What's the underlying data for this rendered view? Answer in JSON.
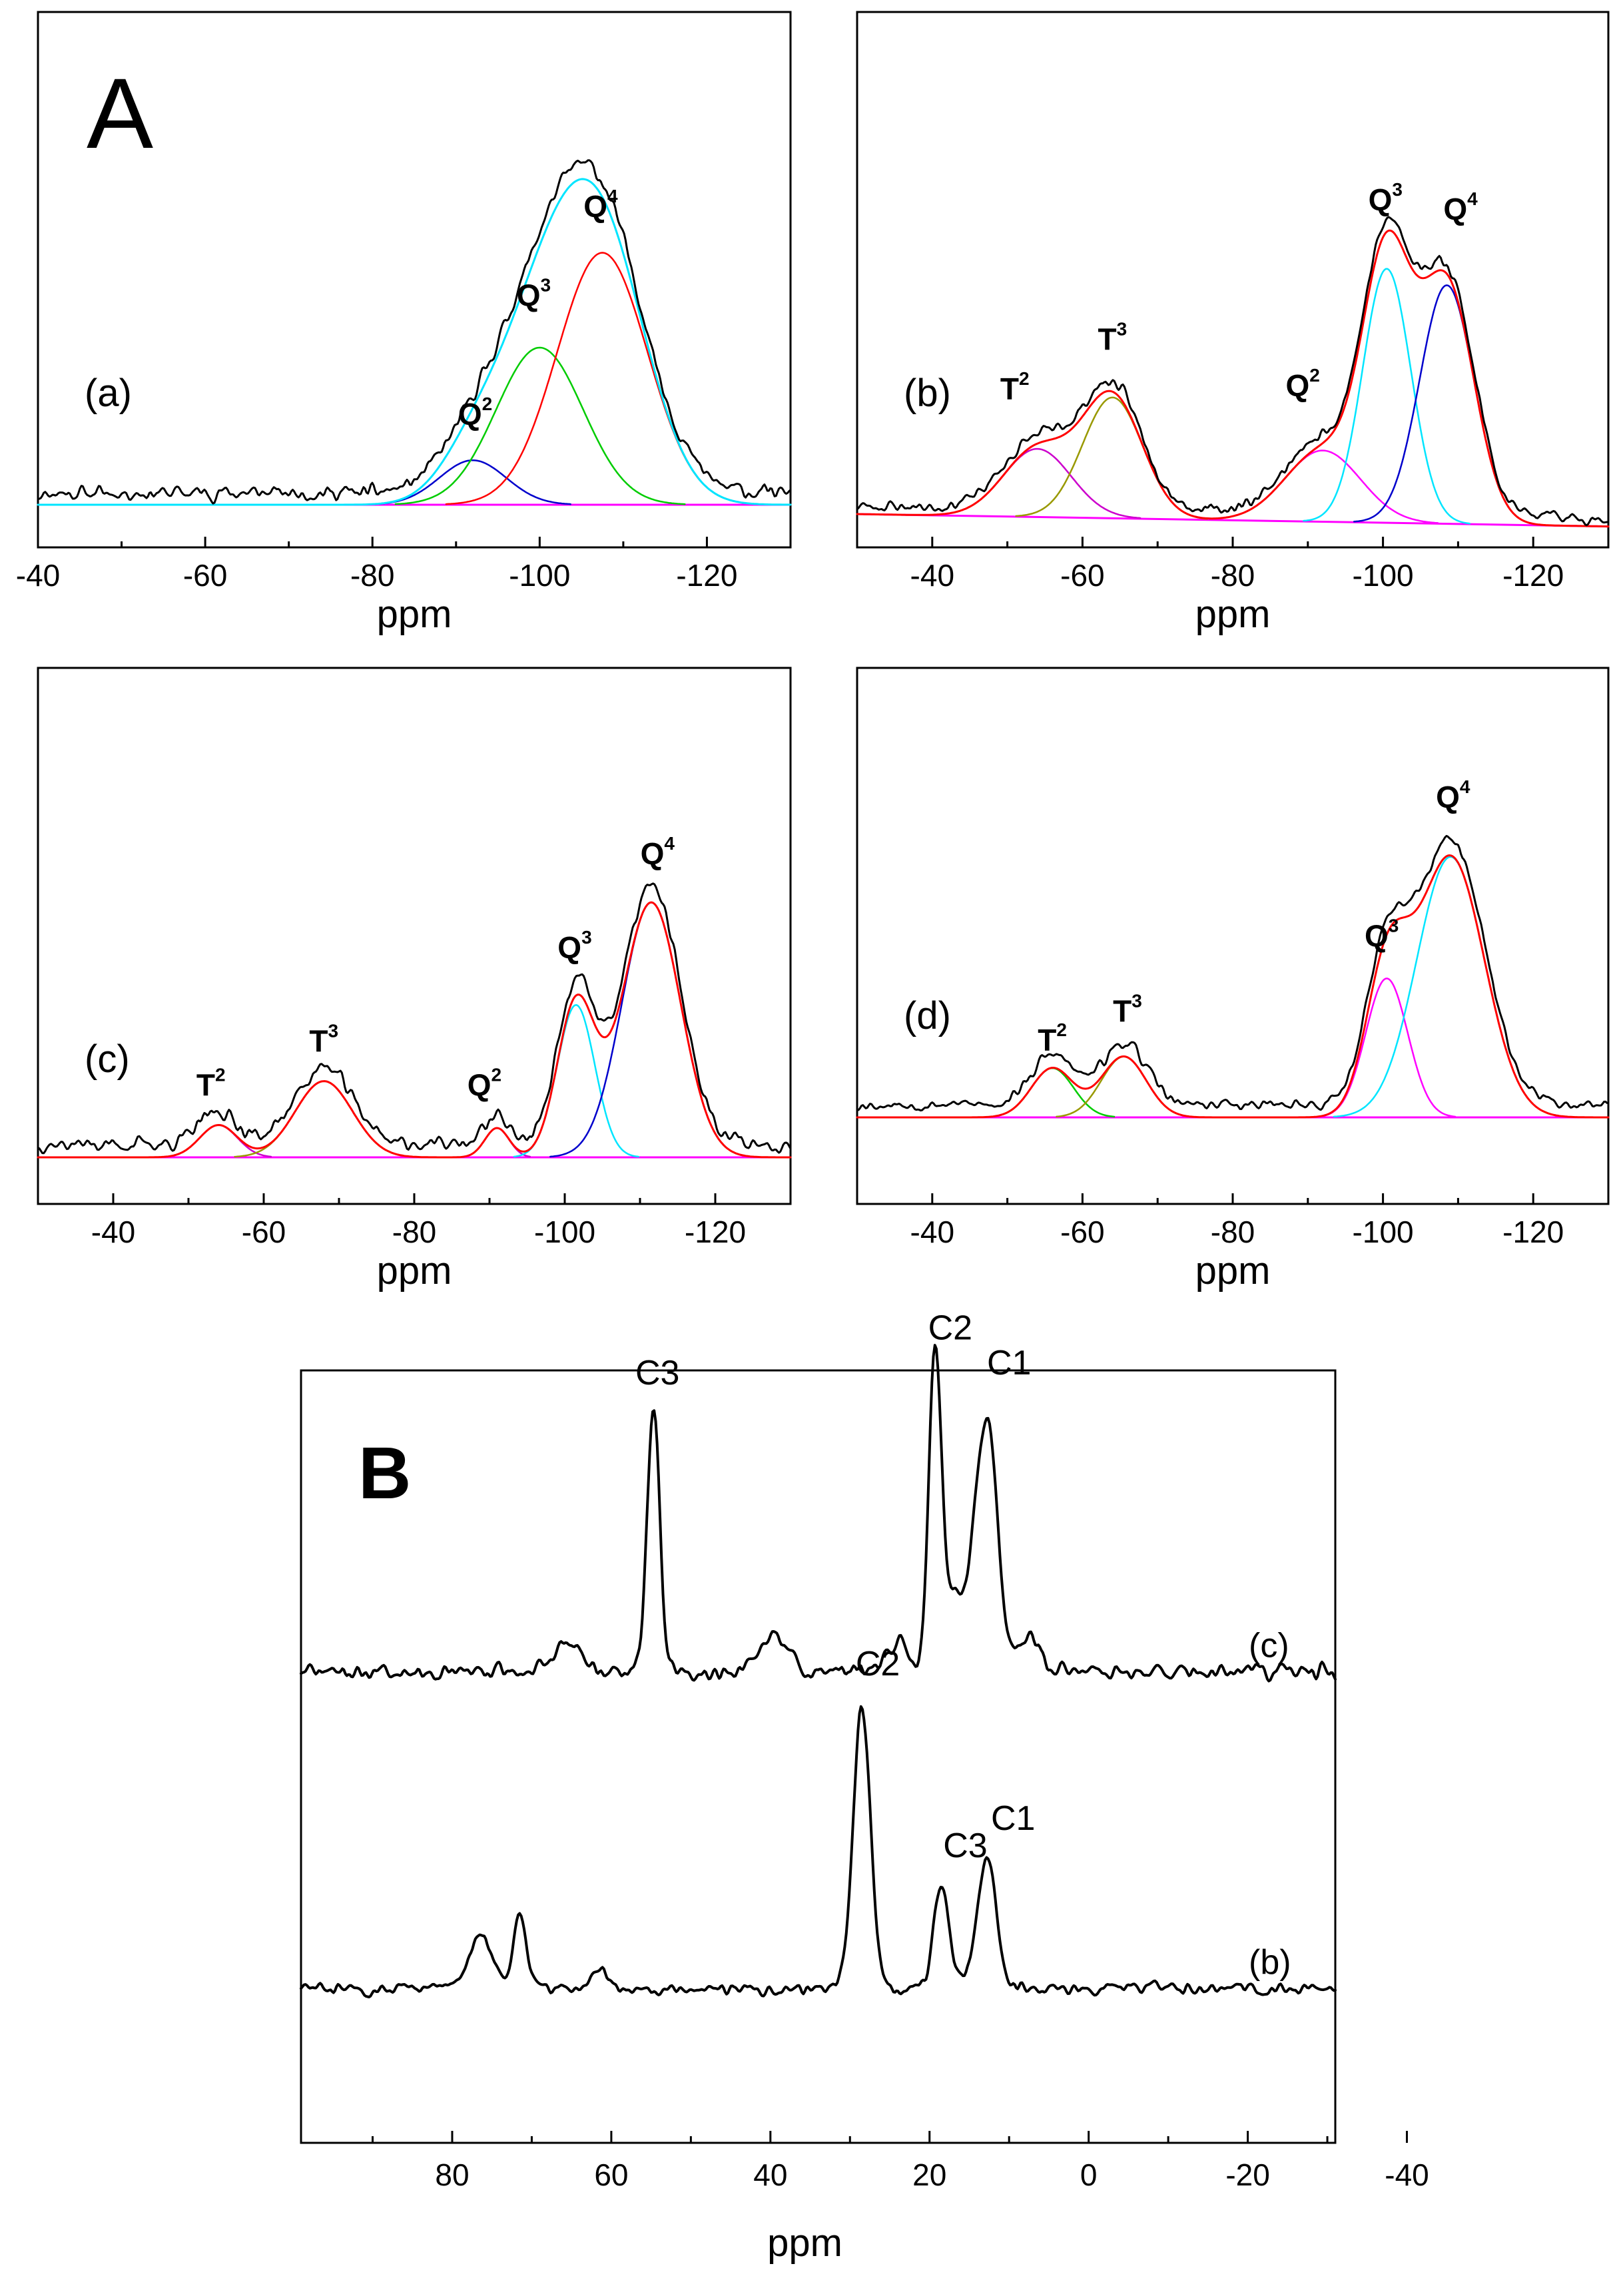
{
  "figure_labels": {
    "A": "A",
    "B": "B"
  },
  "chart_data": [
    {
      "id": "a",
      "type": "line",
      "subtype": "nmr-deconvolution",
      "panel_label": "(a)",
      "xlabel": "ppm",
      "xlim": [
        -40,
        -130
      ],
      "xticks": [
        -40,
        -60,
        -80,
        -100,
        -120
      ],
      "xtick_labels": [
        "-40",
        "-60",
        "-80",
        "-100",
        "-120"
      ],
      "baseline": 0.05,
      "ylim": [
        0,
        1.0
      ],
      "experimental": {
        "name": "experimental",
        "color": "#000000",
        "noise": 0.02,
        "base": 0.09,
        "seed": 11
      },
      "envelope": {
        "name": "fit",
        "color": "#00e5ff"
      },
      "components": [
        {
          "label": "Q",
          "sup": "2",
          "center": -92,
          "height": 0.15,
          "width": 4.0,
          "color": "#0000cc"
        },
        {
          "label": "Q",
          "sup": "3",
          "center": -100,
          "height": 0.53,
          "width": 5.2,
          "color": "#00cc00"
        },
        {
          "label": "Q",
          "sup": "4",
          "center": -107.5,
          "height": 0.85,
          "width": 5.4,
          "color": "#ff0000"
        }
      ],
      "peak_labels": [
        {
          "label": "Q",
          "sup": "2",
          "x": -92,
          "y": 0.32
        },
        {
          "label": "Q",
          "sup": "3",
          "x": -99,
          "y": 0.72
        },
        {
          "label": "Q",
          "sup": "4",
          "x": -107,
          "y": 1.02
        }
      ]
    },
    {
      "id": "b",
      "type": "line",
      "subtype": "nmr-deconvolution",
      "panel_label": "(b)",
      "xlabel": "ppm",
      "xlim": [
        -30,
        -130
      ],
      "xticks": [
        -40,
        -60,
        -80,
        -100,
        -120
      ],
      "xtick_labels": [
        "-40",
        "-60",
        "-80",
        "-100",
        "-120"
      ],
      "baseline": 0.05,
      "baseline_end": 0.01,
      "ylim": [
        0,
        1.0
      ],
      "experimental": {
        "name": "experimental",
        "color": "#000000",
        "noise": 0.015,
        "base": 0.06,
        "seed": 23
      },
      "envelope": {
        "name": "fit",
        "color": "#ff0000"
      },
      "components": [
        {
          "label": "T",
          "sup": "2",
          "center": -54,
          "height": 0.22,
          "width": 4.5,
          "color": "#cc00cc"
        },
        {
          "label": "T",
          "sup": "3",
          "center": -64,
          "height": 0.39,
          "width": 4.0,
          "color": "#999900"
        },
        {
          "label": "Q",
          "sup": "2",
          "center": -92,
          "height": 0.23,
          "width": 5.0,
          "color": "#ff00ff"
        },
        {
          "label": "Q",
          "sup": "3",
          "center": -100.5,
          "height": 0.82,
          "width": 3.2,
          "color": "#00e5ff"
        },
        {
          "label": "Q",
          "sup": "4",
          "center": -108.5,
          "height": 0.77,
          "width": 3.6,
          "color": "#0000cc"
        }
      ],
      "peak_labels": [
        {
          "label": "T",
          "sup": "2",
          "x": -51,
          "y": 0.42
        },
        {
          "label": "T",
          "sup": "3",
          "x": -64,
          "y": 0.58
        },
        {
          "label": "Q",
          "sup": "2",
          "x": -89,
          "y": 0.43
        },
        {
          "label": "Q",
          "sup": "3",
          "x": -100,
          "y": 1.03
        },
        {
          "label": "Q",
          "sup": "4",
          "x": -110,
          "y": 1.0
        }
      ]
    },
    {
      "id": "c",
      "type": "line",
      "subtype": "nmr-deconvolution",
      "panel_label": "(c)",
      "xlabel": "ppm",
      "xlim": [
        -30,
        -130
      ],
      "xticks": [
        -40,
        -60,
        -80,
        -100,
        -120
      ],
      "xtick_labels": [
        "-40",
        "-60",
        "-80",
        "-100",
        "-120"
      ],
      "baseline": 0.05,
      "ylim": [
        0,
        1.0
      ],
      "experimental": {
        "name": "experimental",
        "color": "#000000",
        "noise": 0.02,
        "base": 0.1,
        "seed": 37
      },
      "envelope": {
        "name": "fit",
        "color": "#ff0000"
      },
      "components": [
        {
          "label": "T",
          "sup": "2",
          "center": -54,
          "height": 0.11,
          "width": 2.5,
          "color": "#cc00cc"
        },
        {
          "label": "T",
          "sup": "3",
          "center": -68,
          "height": 0.26,
          "width": 3.8,
          "color": "#999900"
        },
        {
          "label": "Q",
          "sup": "2",
          "center": -91,
          "height": 0.1,
          "width": 1.6,
          "color": "#cc00cc"
        },
        {
          "label": "Q",
          "sup": "3",
          "center": -101.5,
          "height": 0.52,
          "width": 2.5,
          "color": "#00e5ff"
        },
        {
          "label": "Q",
          "sup": "4",
          "center": -111.5,
          "height": 0.87,
          "width": 3.9,
          "color": "#0000cc"
        }
      ],
      "peak_labels": [
        {
          "label": "T",
          "sup": "2",
          "x": -53,
          "y": 0.26
        },
        {
          "label": "T",
          "sup": "3",
          "x": -68,
          "y": 0.41
        },
        {
          "label": "Q",
          "sup": "2",
          "x": -89,
          "y": 0.26
        },
        {
          "label": "Q",
          "sup": "3",
          "x": -101,
          "y": 0.73
        },
        {
          "label": "Q",
          "sup": "4",
          "x": -112,
          "y": 1.05
        }
      ]
    },
    {
      "id": "d",
      "type": "line",
      "subtype": "nmr-deconvolution",
      "panel_label": "(d)",
      "xlabel": "ppm",
      "xlim": [
        -30,
        -130
      ],
      "xticks": [
        -40,
        -60,
        -80,
        -100,
        -120
      ],
      "xtick_labels": [
        "-40",
        "-60",
        "-80",
        "-100",
        "-120"
      ],
      "baseline": 0.05,
      "ylim": [
        0,
        1.0
      ],
      "experimental": {
        "name": "experimental",
        "color": "#000000",
        "noise": 0.015,
        "base": 0.1,
        "seed": 53
      },
      "envelope": {
        "name": "fit",
        "color": "#ff0000"
      },
      "components": [
        {
          "label": "T",
          "sup": "2",
          "center": -56,
          "height": 0.17,
          "width": 2.8,
          "color": "#00cc00"
        },
        {
          "label": "T",
          "sup": "3",
          "center": -65.5,
          "height": 0.21,
          "width": 3.0,
          "color": "#999900"
        },
        {
          "label": "Q",
          "sup": "3",
          "center": -100.5,
          "height": 0.48,
          "width": 2.8,
          "color": "#ff00ff"
        },
        {
          "label": "Q",
          "sup": "4",
          "center": -109,
          "height": 0.9,
          "width": 4.5,
          "color": "#00e5ff"
        }
      ],
      "peak_labels": [
        {
          "label": "T",
          "sup": "2",
          "x": -56,
          "y": 0.28
        },
        {
          "label": "T",
          "sup": "3",
          "x": -66,
          "y": 0.38
        },
        {
          "label": "Q",
          "sup": "3",
          "x": -99.5,
          "y": 0.64
        },
        {
          "label": "Q",
          "sup": "4",
          "x": -109,
          "y": 1.12
        }
      ]
    },
    {
      "id": "B",
      "type": "line",
      "subtype": "nmr-stacked",
      "xlabel": "ppm",
      "xlim": [
        99,
        -31
      ],
      "xticks": [
        80,
        60,
        40,
        20,
        0,
        -20,
        -40
      ],
      "xtick_labels": [
        "80",
        "60",
        "40",
        "20",
        "0",
        "-20",
        "-40"
      ],
      "ylim": [
        0,
        1.0
      ],
      "series": [
        {
          "name": "(c)",
          "base": 0.61,
          "noise": 0.008,
          "seed": 71,
          "peaks": [
            {
              "center": 54.7,
              "height": 0.34,
              "width": 0.8
            },
            {
              "center": 19.3,
              "height": 0.39,
              "width": 0.8
            },
            {
              "center": 12.8,
              "height": 0.32,
              "width": 1.3
            },
            {
              "center": 16.5,
              "height": 0.1,
              "width": 1.8
            },
            {
              "center": 39.5,
              "height": 0.05,
              "width": 1.6
            },
            {
              "center": 65.5,
              "height": 0.04,
              "width": 1.5
            },
            {
              "center": 24.0,
              "height": 0.04,
              "width": 1.2
            },
            {
              "center": 7.5,
              "height": 0.04,
              "width": 1.5
            }
          ],
          "labels": [
            {
              "text": "C3",
              "x": 54.2,
              "y": 0.982
            },
            {
              "text": "C2",
              "x": 17.4,
              "y": 1.04
            },
            {
              "text": "C1",
              "x": 10.0,
              "y": 0.995
            }
          ]
        },
        {
          "name": "(b)",
          "base": 0.2,
          "noise": 0.006,
          "seed": 83,
          "peaks": [
            {
              "center": 28.5,
              "height": 0.36,
              "width": 1.1
            },
            {
              "center": 18.5,
              "height": 0.13,
              "width": 1.0
            },
            {
              "center": 12.8,
              "height": 0.17,
              "width": 1.2
            },
            {
              "center": 71.5,
              "height": 0.1,
              "width": 0.8
            },
            {
              "center": 76.5,
              "height": 0.07,
              "width": 1.4
            },
            {
              "center": 61.5,
              "height": 0.025,
              "width": 1.2
            }
          ],
          "labels": [
            {
              "text": "C2",
              "x": 26.5,
              "y": 0.605
            },
            {
              "text": "C3",
              "x": 15.5,
              "y": 0.37
            },
            {
              "text": "C1",
              "x": 9.5,
              "y": 0.405
            }
          ]
        }
      ]
    }
  ]
}
